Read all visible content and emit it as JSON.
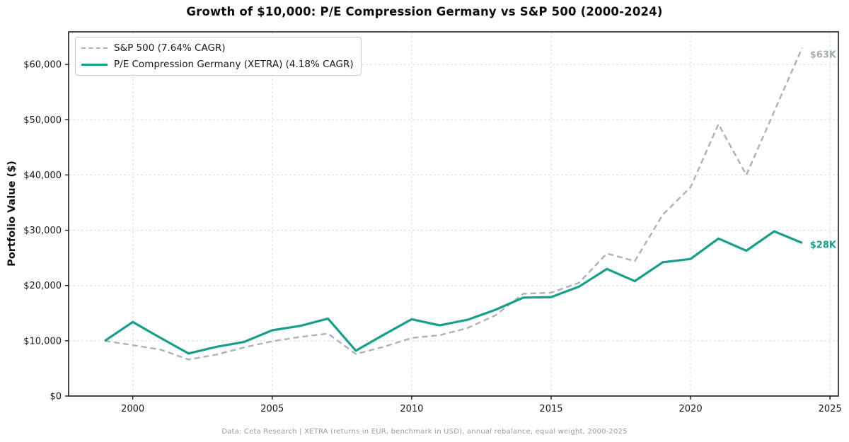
{
  "title": "Growth of $10,000: P/E Compression Germany vs S&P 500 (2000-2024)",
  "y_axis_label": "Portfolio Value ($)",
  "footer": "Data: Ceta Research | XETRA (returns in EUR, benchmark in USD), annual rebalance, equal weight, 2000-2025",
  "colors": {
    "sp500_line": "#a9b3b9",
    "germany_line": "#189e8a",
    "grid": "#dcdcdc",
    "frame": "#1a1a1a",
    "tick_text": "#1a1a1a",
    "footer_text": "#93a1a8"
  },
  "chart_data": {
    "type": "line",
    "title": "Growth of $10,000: P/E Compression Germany vs S&P 500 (2000-2024)",
    "xlabel": "",
    "ylabel": "Portfolio Value ($)",
    "x": [
      1999,
      2000,
      2001,
      2002,
      2003,
      2004,
      2005,
      2006,
      2007,
      2008,
      2009,
      2010,
      2011,
      2012,
      2013,
      2014,
      2015,
      2016,
      2017,
      2018,
      2019,
      2020,
      2021,
      2022,
      2023,
      2024
    ],
    "series": [
      {
        "name": "S&P 500 (7.64% CAGR)",
        "style": "dashed",
        "color": "#a9b3b9",
        "values": [
          10000,
          9200,
          8400,
          6600,
          7500,
          8800,
          9900,
          10700,
          11300,
          7600,
          8900,
          10500,
          11000,
          12300,
          14600,
          18500,
          18700,
          20500,
          25800,
          24400,
          32800,
          37800,
          49200,
          40000,
          51500,
          63000
        ]
      },
      {
        "name": "P/E Compression Germany (XETRA) (4.18% CAGR)",
        "style": "solid",
        "color": "#189e8a",
        "values": [
          10000,
          13400,
          10500,
          7700,
          8900,
          9800,
          11900,
          12700,
          14000,
          8200,
          11100,
          13900,
          12800,
          13800,
          15600,
          17800,
          17900,
          19800,
          23000,
          20800,
          24200,
          24800,
          28500,
          26300,
          29800,
          27700
        ]
      }
    ],
    "annotations": [
      {
        "text": "$63K",
        "x": 2024,
        "y": 63000,
        "color": "#a3adb3",
        "dy": 10
      },
      {
        "text": "$28K",
        "x": 2024,
        "y": 27700,
        "color": "#189e8a",
        "dy": 3
      }
    ],
    "xlim": [
      1997.7,
      2025.3
    ],
    "ylim": [
      0,
      65900
    ],
    "x_ticks": [
      2000,
      2005,
      2010,
      2015,
      2020,
      2025
    ],
    "y_ticks": [
      0,
      10000,
      20000,
      30000,
      40000,
      50000,
      60000
    ],
    "grid": true,
    "legend_position": "upper-left"
  }
}
